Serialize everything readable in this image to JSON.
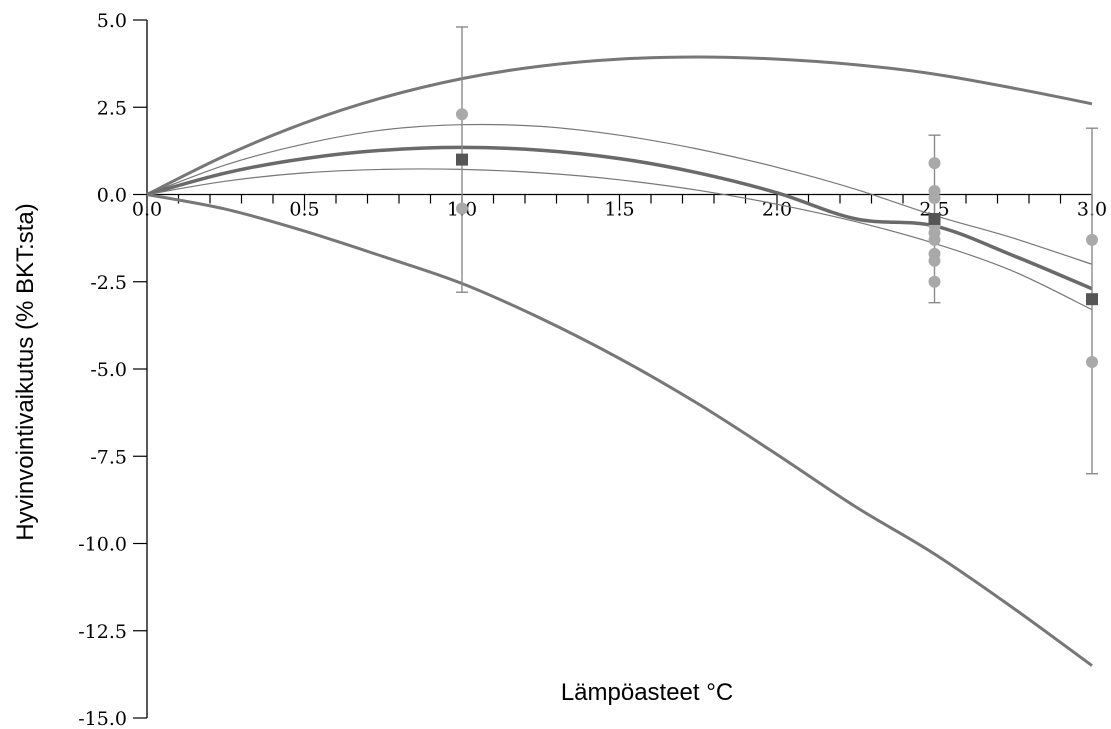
{
  "chart_data": {
    "type": "scatter",
    "title": "",
    "xlabel": "Lämpöasteet °C",
    "ylabel": "Hyvinvointivaikutus (% BKT:sta)",
    "xlim": [
      0.0,
      3.0
    ],
    "ylim": [
      -15.0,
      5.0
    ],
    "x_ticks": [
      0.0,
      0.5,
      1.0,
      1.5,
      2.0,
      2.5,
      3.0
    ],
    "x_tick_labels": [
      "0.0",
      "0.5",
      "1.0",
      "1.5",
      "2.0",
      "2.5",
      "3.0"
    ],
    "y_ticks": [
      5.0,
      2.5,
      0.0,
      -2.5,
      -5.0,
      -7.5,
      -10.0,
      -12.5,
      -15.0
    ],
    "y_tick_labels": [
      "5.0",
      "2.5",
      "0.0",
      "-2.5",
      "-5.0",
      "-7.5",
      "-10.0",
      "-12.5",
      "-15.0"
    ],
    "grid": false,
    "colors": {
      "curve": "#777777",
      "fit": "#6a6a6a",
      "points": "#a9a9a9",
      "means": "#555555",
      "errorbars": "#8a8a8a"
    },
    "estimates": {
      "x": [
        1.0,
        1.0,
        2.5,
        2.5,
        2.5,
        2.5,
        2.5,
        2.5,
        2.5,
        2.5,
        2.5,
        3.0,
        3.0
      ],
      "y": [
        2.3,
        -0.4,
        0.9,
        0.1,
        -0.1,
        -1.1,
        -1.3,
        -1.7,
        -1.9,
        -2.5,
        -0.9,
        -4.8,
        -1.3
      ]
    },
    "means": {
      "x": [
        1.0,
        2.5,
        3.0
      ],
      "y": [
        1.0,
        -0.7,
        -3.0
      ],
      "err_low": [
        -2.8,
        -3.1,
        -8.0
      ],
      "err_high": [
        4.8,
        1.7,
        1.9
      ]
    },
    "curves": [
      {
        "role": "upper bound",
        "x": [
          0,
          0.25,
          0.5,
          0.75,
          1.0,
          1.25,
          1.5,
          1.75,
          2.0,
          2.25,
          2.5,
          2.75,
          3.0
        ],
        "y": [
          0,
          1.12,
          2.05,
          2.78,
          3.32,
          3.68,
          3.88,
          3.94,
          3.88,
          3.72,
          3.45,
          3.05,
          2.6
        ]
      },
      {
        "role": "upper confidence",
        "x": [
          0,
          0.25,
          0.5,
          0.75,
          1.0,
          1.25,
          1.5,
          1.75,
          2.0,
          2.25,
          2.5,
          2.75,
          3.0
        ],
        "y": [
          0,
          0.85,
          1.45,
          1.85,
          2.0,
          1.95,
          1.7,
          1.3,
          0.78,
          0.15,
          -0.6,
          -1.25,
          -2.0
        ]
      },
      {
        "role": "best fit",
        "x": [
          0,
          0.25,
          0.5,
          0.75,
          1.0,
          1.25,
          1.5,
          1.75,
          2.0,
          2.25,
          2.5,
          2.75,
          3.0
        ],
        "y": [
          0,
          0.62,
          1.03,
          1.27,
          1.35,
          1.27,
          1.03,
          0.62,
          0.05,
          -0.7,
          -0.9,
          -1.75,
          -2.7
        ]
      },
      {
        "role": "lower confidence",
        "x": [
          0,
          0.25,
          0.5,
          0.75,
          1.0,
          1.25,
          1.5,
          1.75,
          2.0,
          2.25,
          2.5,
          2.75,
          3.0
        ],
        "y": [
          0,
          0.38,
          0.62,
          0.72,
          0.72,
          0.62,
          0.42,
          0.12,
          -0.28,
          -0.78,
          -1.4,
          -2.2,
          -3.3
        ]
      },
      {
        "role": "lower bound",
        "x": [
          0,
          0.25,
          0.5,
          0.75,
          1.0,
          1.25,
          1.5,
          1.75,
          2.0,
          2.25,
          2.5,
          2.75,
          3.0
        ],
        "y": [
          0,
          -0.42,
          -1.05,
          -1.78,
          -2.55,
          -3.55,
          -4.7,
          -6.0,
          -7.45,
          -8.95,
          -10.3,
          -11.85,
          -13.5
        ]
      }
    ]
  }
}
